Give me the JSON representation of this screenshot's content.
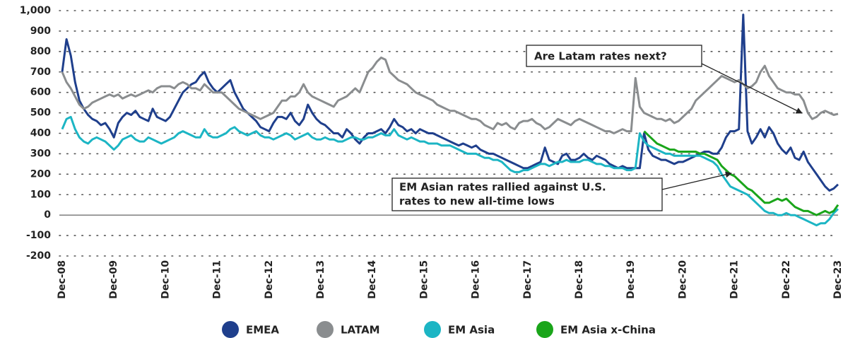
{
  "chart_data": {
    "type": "line",
    "categories": [
      "Dec-08",
      null,
      null,
      null,
      null,
      null,
      null,
      null,
      null,
      null,
      null,
      null,
      "Dec-09",
      null,
      null,
      null,
      null,
      null,
      null,
      null,
      null,
      null,
      null,
      null,
      "Dec-10",
      null,
      null,
      null,
      null,
      null,
      null,
      null,
      null,
      null,
      null,
      null,
      "Dec-11",
      null,
      null,
      null,
      null,
      null,
      null,
      null,
      null,
      null,
      null,
      null,
      "Dec-12",
      null,
      null,
      null,
      null,
      null,
      null,
      null,
      null,
      null,
      null,
      null,
      "Dec-13",
      null,
      null,
      null,
      null,
      null,
      null,
      null,
      null,
      null,
      null,
      null,
      "Dec-14",
      null,
      null,
      null,
      null,
      null,
      null,
      null,
      null,
      null,
      null,
      null,
      "Dec-15",
      null,
      null,
      null,
      null,
      null,
      null,
      null,
      null,
      null,
      null,
      null,
      "Dec-16",
      null,
      null,
      null,
      null,
      null,
      null,
      null,
      null,
      null,
      null,
      null,
      "Dec-17",
      null,
      null,
      null,
      null,
      null,
      null,
      null,
      null,
      null,
      null,
      null,
      "Dec-18",
      null,
      null,
      null,
      null,
      null,
      null,
      null,
      null,
      null,
      null,
      null,
      "Dec-19",
      null,
      null,
      null,
      null,
      null,
      null,
      null,
      null,
      null,
      null,
      null,
      "Dec-20",
      null,
      null,
      null,
      null,
      null,
      null,
      null,
      null,
      null,
      null,
      null,
      "Dec-21",
      null,
      null,
      null,
      null,
      null,
      null,
      null,
      null,
      null,
      null,
      null,
      "Dec-22",
      null,
      null,
      null,
      null,
      null,
      null,
      null,
      null,
      null,
      null,
      null,
      "Dec-23"
    ],
    "series": [
      {
        "name": "EMEA",
        "color": "#1f3f8c",
        "values": [
          700,
          860,
          780,
          650,
          560,
          520,
          490,
          470,
          460,
          440,
          450,
          420,
          380,
          450,
          480,
          500,
          490,
          510,
          480,
          470,
          460,
          520,
          480,
          470,
          460,
          480,
          520,
          560,
          600,
          620,
          640,
          650,
          680,
          700,
          650,
          620,
          600,
          620,
          640,
          660,
          600,
          560,
          520,
          500,
          480,
          460,
          430,
          420,
          410,
          450,
          480,
          480,
          470,
          500,
          460,
          440,
          470,
          540,
          500,
          470,
          450,
          440,
          420,
          400,
          400,
          380,
          420,
          400,
          370,
          350,
          380,
          400,
          400,
          410,
          420,
          400,
          430,
          470,
          440,
          430,
          410,
          420,
          400,
          420,
          410,
          400,
          400,
          390,
          380,
          370,
          360,
          350,
          340,
          350,
          340,
          330,
          340,
          320,
          310,
          300,
          300,
          290,
          280,
          270,
          260,
          250,
          240,
          230,
          230,
          240,
          250,
          260,
          330,
          270,
          260,
          250,
          290,
          300,
          270,
          270,
          280,
          300,
          280,
          270,
          290,
          280,
          270,
          250,
          240,
          230,
          240,
          230,
          230,
          230,
          230,
          400,
          320,
          290,
          280,
          270,
          270,
          260,
          250,
          260,
          260,
          270,
          280,
          290,
          300,
          310,
          310,
          300,
          300,
          330,
          380,
          410,
          410,
          420,
          980,
          410,
          350,
          380,
          420,
          380,
          430,
          400,
          350,
          320,
          300,
          330,
          280,
          270,
          310,
          260,
          230,
          200,
          170,
          140,
          120,
          130,
          150
        ]
      },
      {
        "name": "LATAM",
        "color": "#8a8d8f",
        "values": [
          700,
          650,
          620,
          580,
          540,
          520,
          530,
          550,
          560,
          570,
          580,
          590,
          580,
          590,
          570,
          580,
          590,
          580,
          590,
          600,
          610,
          600,
          620,
          630,
          630,
          630,
          620,
          640,
          650,
          640,
          620,
          620,
          610,
          640,
          620,
          600,
          600,
          600,
          580,
          560,
          540,
          520,
          510,
          500,
          490,
          480,
          470,
          480,
          490,
          500,
          530,
          560,
          560,
          580,
          580,
          600,
          640,
          600,
          580,
          570,
          560,
          550,
          540,
          530,
          560,
          570,
          580,
          600,
          620,
          600,
          650,
          700,
          720,
          750,
          770,
          760,
          700,
          680,
          660,
          650,
          640,
          620,
          600,
          590,
          580,
          570,
          560,
          540,
          530,
          520,
          510,
          510,
          500,
          490,
          480,
          470,
          470,
          460,
          440,
          430,
          420,
          450,
          440,
          450,
          430,
          420,
          450,
          460,
          460,
          470,
          450,
          440,
          420,
          430,
          450,
          470,
          460,
          450,
          440,
          460,
          470,
          460,
          450,
          440,
          430,
          420,
          410,
          410,
          400,
          410,
          420,
          410,
          410,
          670,
          530,
          500,
          490,
          480,
          470,
          470,
          460,
          470,
          450,
          460,
          480,
          500,
          520,
          560,
          580,
          600,
          620,
          640,
          660,
          680,
          670,
          660,
          650,
          660,
          640,
          620,
          630,
          650,
          700,
          730,
          680,
          650,
          620,
          610,
          600,
          600,
          590,
          590,
          560,
          500,
          470,
          480,
          500,
          510,
          500,
          490,
          495
        ]
      },
      {
        "name": "EM Asia",
        "color": "#1cb5c4",
        "values": [
          420,
          470,
          480,
          420,
          380,
          360,
          350,
          370,
          380,
          370,
          360,
          340,
          320,
          340,
          370,
          380,
          390,
          370,
          360,
          360,
          380,
          370,
          360,
          350,
          360,
          370,
          380,
          400,
          410,
          400,
          390,
          380,
          380,
          420,
          390,
          380,
          380,
          390,
          400,
          420,
          430,
          410,
          400,
          390,
          400,
          410,
          390,
          380,
          380,
          370,
          380,
          390,
          400,
          390,
          370,
          380,
          390,
          400,
          380,
          370,
          370,
          380,
          370,
          370,
          360,
          360,
          370,
          380,
          380,
          370,
          370,
          380,
          380,
          390,
          400,
          390,
          390,
          420,
          390,
          380,
          370,
          380,
          370,
          360,
          360,
          350,
          350,
          350,
          340,
          340,
          340,
          330,
          320,
          310,
          300,
          300,
          300,
          290,
          280,
          280,
          270,
          270,
          260,
          240,
          220,
          210,
          210,
          220,
          220,
          230,
          240,
          250,
          250,
          240,
          250,
          260,
          260,
          270,
          260,
          260,
          260,
          270,
          270,
          260,
          250,
          250,
          240,
          240,
          230,
          230,
          230,
          220,
          220,
          230,
          400,
          360,
          340,
          330,
          320,
          310,
          300,
          300,
          290,
          290,
          290,
          290,
          290,
          290,
          290,
          280,
          270,
          260,
          240,
          200,
          170,
          140,
          130,
          120,
          110,
          100,
          80,
          60,
          40,
          20,
          10,
          10,
          0,
          0,
          10,
          0,
          0,
          -10,
          -20,
          -30,
          -40,
          -50,
          -40,
          -40,
          -20,
          10,
          30
        ]
      },
      {
        "name": "EM Asia x-China",
        "color": "#1aa51a",
        "values": [
          null,
          null,
          null,
          null,
          null,
          null,
          null,
          null,
          null,
          null,
          null,
          null,
          null,
          null,
          null,
          null,
          null,
          null,
          null,
          null,
          null,
          null,
          null,
          null,
          null,
          null,
          null,
          null,
          null,
          null,
          null,
          null,
          null,
          null,
          null,
          null,
          null,
          null,
          null,
          null,
          null,
          null,
          null,
          null,
          null,
          null,
          null,
          null,
          null,
          null,
          null,
          null,
          null,
          null,
          null,
          null,
          null,
          null,
          null,
          null,
          null,
          null,
          null,
          null,
          null,
          null,
          null,
          null,
          null,
          null,
          null,
          null,
          null,
          null,
          null,
          null,
          null,
          null,
          null,
          null,
          null,
          null,
          null,
          null,
          null,
          null,
          null,
          null,
          null,
          null,
          null,
          null,
          null,
          null,
          null,
          null,
          null,
          null,
          null,
          null,
          null,
          null,
          null,
          null,
          null,
          null,
          null,
          null,
          null,
          null,
          null,
          null,
          null,
          null,
          null,
          null,
          null,
          null,
          null,
          null,
          null,
          null,
          null,
          null,
          null,
          null,
          null,
          null,
          null,
          null,
          null,
          null,
          null,
          null,
          null,
          410,
          390,
          370,
          350,
          340,
          330,
          320,
          320,
          310,
          310,
          310,
          310,
          310,
          300,
          300,
          290,
          280,
          270,
          240,
          220,
          200,
          190,
          170,
          150,
          130,
          120,
          100,
          80,
          60,
          60,
          70,
          80,
          70,
          80,
          60,
          40,
          30,
          20,
          20,
          10,
          0,
          10,
          20,
          10,
          20,
          50
        ]
      }
    ],
    "ylim": [
      -200,
      1000
    ],
    "yticks": [
      -200,
      -100,
      0,
      100,
      200,
      300,
      400,
      500,
      600,
      700,
      800,
      900,
      {
        "value": 1000,
        "label": "1,000"
      }
    ],
    "grid": true,
    "legend": "bottom",
    "annotations": [
      {
        "lines": [
          "Are Latam rates next?"
        ]
      },
      {
        "lines": [
          "EM Asian rates rallied against U.S.",
          "rates to new all-time lows"
        ]
      }
    ]
  }
}
